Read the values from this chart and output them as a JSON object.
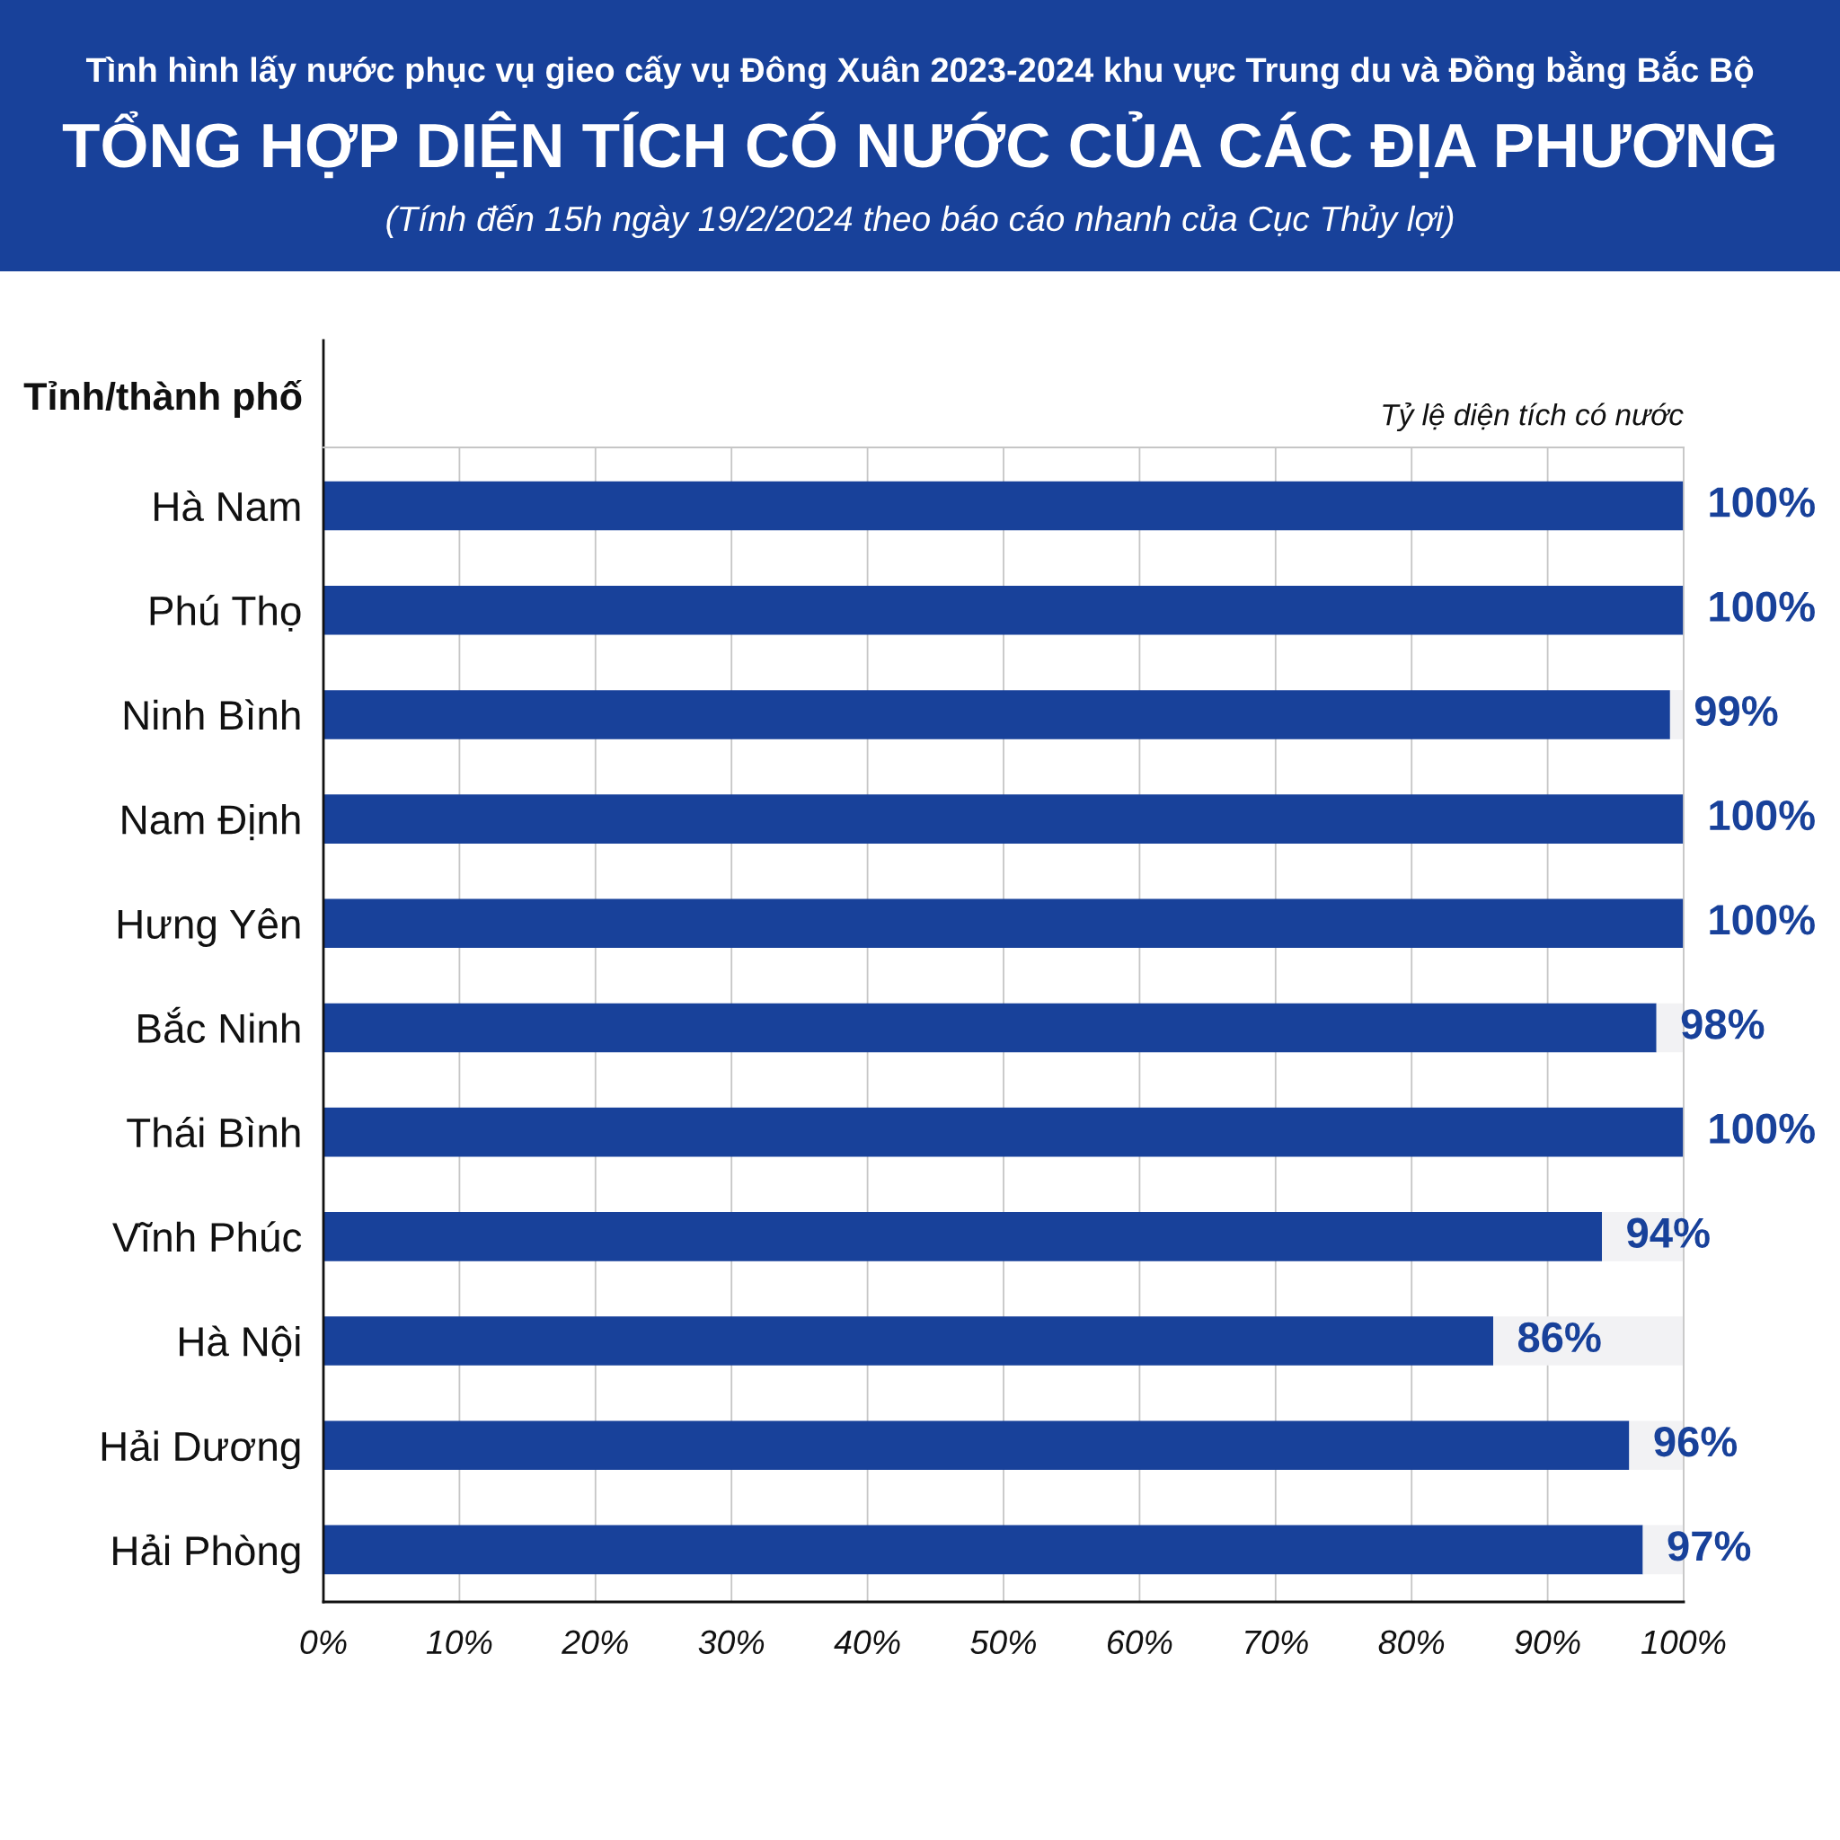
{
  "chart_data": {
    "type": "bar",
    "orientation": "horizontal",
    "stacked": true,
    "annotations": [
      "Tình hình lấy nước phục vụ gieo cấy vụ Đông Xuân 2023-2024 khu vực Trung du và Đồng bằng Bắc Bộ"
    ],
    "title": "TỔNG HỢP DIỆN TÍCH CÓ NƯỚC CỦA CÁC ĐỊA PHƯƠNG",
    "subtitle": "(Tính đến 15h ngày 19/2/2024 theo báo cáo nhanh của Cục Thủy lợi)",
    "ylabel": "Tỉnh/thành phố",
    "xlabel": "Tỷ lệ diện tích có nước",
    "categories": [
      "Hà Nam",
      "Phú Thọ",
      "Ninh Bình",
      "Nam Định",
      "Hưng Yên",
      "Bắc Ninh",
      "Thái Bình",
      "Vĩnh Phúc",
      "Hà Nội",
      "Hải Dương",
      "Hải Phòng"
    ],
    "series": [
      {
        "color": "#18419a",
        "values": [
          100,
          100,
          99,
          100,
          100,
          98,
          100,
          94,
          86,
          96,
          97
        ],
        "value_labels": [
          "100%",
          "100%",
          "99%",
          "100%",
          "100%",
          "98%",
          "100%",
          "94%",
          "86%",
          "96%",
          "97%"
        ]
      },
      {
        "color": "#f2f2f4",
        "values": [
          0,
          0,
          1,
          0,
          0,
          2,
          0,
          6,
          14,
          4,
          3
        ]
      }
    ],
    "xlim": [
      0,
      100
    ],
    "xticks": [
      {
        "value": 0,
        "label": "0%"
      },
      {
        "value": 10,
        "label": "10%"
      },
      {
        "value": 20,
        "label": "20%"
      },
      {
        "value": 30,
        "label": "30%"
      },
      {
        "value": 40,
        "label": "40%"
      },
      {
        "value": 50,
        "label": "50%"
      },
      {
        "value": 60,
        "label": "60%"
      },
      {
        "value": 70,
        "label": "70%"
      },
      {
        "value": 80,
        "label": "80%"
      },
      {
        "value": 90,
        "label": "90%"
      },
      {
        "value": 100,
        "label": "100%"
      }
    ],
    "grid": "x"
  }
}
